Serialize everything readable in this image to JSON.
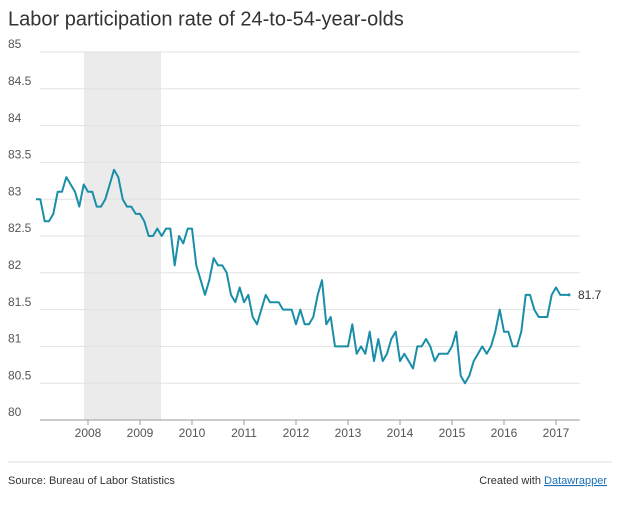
{
  "chart_data": {
    "type": "line",
    "title": "Labor participation rate of 24-to-54-year-olds",
    "source": "Source: Bureau of Labor Statistics",
    "credit_prefix": "Created with",
    "credit_link": "Datawrapper",
    "categories": [
      null,
      null,
      null,
      null,
      null,
      null,
      null,
      null,
      null,
      null,
      null,
      null,
      "2008",
      null,
      null,
      null,
      null,
      null,
      null,
      null,
      null,
      null,
      null,
      null,
      "2009",
      null,
      null,
      null,
      null,
      null,
      null,
      null,
      null,
      null,
      null,
      null,
      "2010",
      null,
      null,
      null,
      null,
      null,
      null,
      null,
      null,
      null,
      null,
      null,
      "2011",
      null,
      null,
      null,
      null,
      null,
      null,
      null,
      null,
      null,
      null,
      null,
      "2012",
      null,
      null,
      null,
      null,
      null,
      null,
      null,
      null,
      null,
      null,
      null,
      "2013",
      null,
      null,
      null,
      null,
      null,
      null,
      null,
      null,
      null,
      null,
      null,
      "2014",
      null,
      null,
      null,
      null,
      null,
      null,
      null,
      null,
      null,
      null,
      null,
      "2015",
      null,
      null,
      null,
      null,
      null,
      null,
      null,
      null,
      null,
      null,
      null,
      "2016",
      null,
      null,
      null,
      null,
      null,
      null,
      null,
      null,
      null,
      null,
      null,
      "2017",
      null,
      null,
      null
    ],
    "series": [
      {
        "name": "Participation rate",
        "color": "#1a8ea8",
        "values": [
          83.0,
          83.0,
          82.7,
          82.7,
          82.8,
          83.1,
          83.1,
          83.3,
          83.2,
          83.1,
          82.9,
          83.2,
          83.1,
          83.1,
          82.9,
          82.9,
          83.0,
          83.2,
          83.4,
          83.3,
          83.0,
          82.9,
          82.9,
          82.8,
          82.8,
          82.7,
          82.5,
          82.5,
          82.6,
          82.5,
          82.6,
          82.6,
          82.1,
          82.5,
          82.4,
          82.6,
          82.6,
          82.1,
          81.9,
          81.7,
          81.9,
          82.2,
          82.1,
          82.1,
          82.0,
          81.7,
          81.6,
          81.8,
          81.6,
          81.7,
          81.4,
          81.3,
          81.5,
          81.7,
          81.6,
          81.6,
          81.6,
          81.5,
          81.5,
          81.5,
          81.3,
          81.5,
          81.3,
          81.3,
          81.4,
          81.7,
          81.9,
          81.3,
          81.4,
          81.0,
          81.0,
          81.0,
          81.0,
          81.3,
          80.9,
          81.0,
          80.9,
          81.2,
          80.8,
          81.1,
          80.8,
          80.9,
          81.1,
          81.2,
          80.8,
          80.9,
          80.8,
          80.7,
          81.0,
          81.0,
          81.1,
          81.0,
          80.8,
          80.9,
          80.9,
          80.9,
          81.0,
          81.2,
          80.6,
          80.5,
          80.6,
          80.8,
          80.9,
          81.0,
          80.9,
          81.0,
          81.2,
          81.5,
          81.2,
          81.2,
          81.0,
          81.0,
          81.2,
          81.7,
          81.7,
          81.5,
          81.4,
          81.4,
          81.4,
          81.7,
          81.8,
          81.7,
          81.7,
          81.7
        ]
      }
    ],
    "ylim": [
      80,
      85
    ],
    "yticks": [
      80,
      80.5,
      81,
      81.5,
      82,
      82.5,
      83,
      83.5,
      84,
      84.5,
      85
    ],
    "grid": true
  }
}
